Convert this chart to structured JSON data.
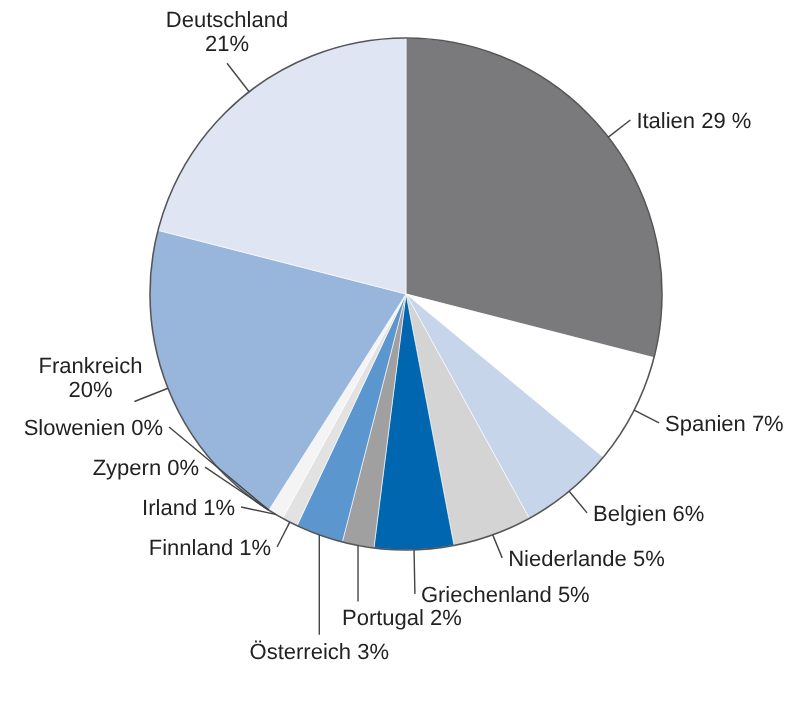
{
  "chart_data": {
    "type": "pie",
    "categories": [
      "Italien",
      "Spanien",
      "Belgien",
      "Niederlande",
      "Griechenland",
      "Portugal",
      "Österreich",
      "Finnland",
      "Irland",
      "Zypern",
      "Slowenien",
      "Frankreich",
      "Deutschland"
    ],
    "values": [
      29,
      7,
      6,
      5,
      5,
      2,
      3,
      1,
      1,
      0,
      0,
      20,
      21
    ],
    "value_labels": [
      "29 %",
      "7%",
      "6%",
      "5%",
      "5%",
      "2%",
      "3%",
      "1%",
      "1%",
      "0%",
      "0%",
      "20%",
      "21%"
    ],
    "colors": [
      "#7a7a7c",
      "#ffffff",
      "#c6d5ea",
      "#d4d4d4",
      "#0066b0",
      "#a0a0a0",
      "#5b96cf",
      "#e2e2e2",
      "#f4f4f4",
      null,
      null,
      "#98b6dc",
      "#dfe5f2"
    ]
  }
}
